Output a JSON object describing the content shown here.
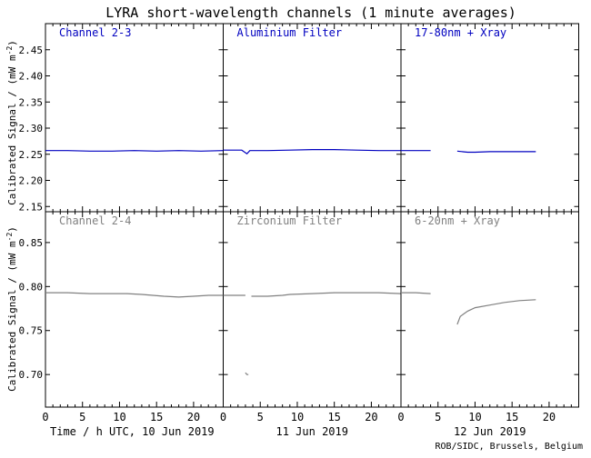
{
  "title": "LYRA short-wavelength channels (1 minute averages)",
  "credit": "ROB/SIDC, Brussels, Belgium",
  "y_axis_label_top": "Calibrated Signal / (mW m",
  "y_axis_label_bottom": "Calibrated Signal / (mW m",
  "y_axis_label_sup": "-2",
  "y_axis_label_close": ")",
  "colors": {
    "axis": "#000000",
    "top_series": "#0000c0",
    "bottom_series": "#808080",
    "background": "#ffffff"
  },
  "chart_data": [
    {
      "type": "line",
      "row": "top",
      "ylim": [
        2.14,
        2.5
      ],
      "yticks": [
        2.15,
        2.2,
        2.25,
        2.3,
        2.35,
        2.4,
        2.45
      ],
      "ytick_labels": [
        "2.15",
        "2.20",
        "2.25",
        "2.30",
        "2.35",
        "2.40",
        "2.45"
      ],
      "grid": false,
      "panels": [
        {
          "label": "Channel 2-3",
          "date": "",
          "segments": [
            [
              [
                0,
                2.257
              ],
              [
                3,
                2.257
              ],
              [
                6,
                2.256
              ],
              [
                9,
                2.256
              ],
              [
                12,
                2.257
              ],
              [
                15,
                2.256
              ],
              [
                18,
                2.257
              ],
              [
                21,
                2.256
              ],
              [
                24,
                2.257
              ]
            ]
          ]
        },
        {
          "label": "Aluminium Filter",
          "date": "",
          "segments": [
            [
              [
                0,
                2.258
              ],
              [
                2.5,
                2.258
              ],
              [
                3.2,
                2.251
              ],
              [
                3.6,
                2.257
              ],
              [
                6,
                2.257
              ],
              [
                9,
                2.258
              ],
              [
                12,
                2.259
              ],
              [
                15,
                2.259
              ],
              [
                18,
                2.258
              ],
              [
                21,
                2.257
              ],
              [
                24,
                2.257
              ]
            ]
          ]
        },
        {
          "label": "17-80nm + Xray",
          "date": "",
          "segments": [
            [
              [
                0,
                2.257
              ],
              [
                2,
                2.257
              ],
              [
                4,
                2.257
              ]
            ],
            [
              [
                7.6,
                2.256
              ],
              [
                9,
                2.254
              ],
              [
                10,
                2.254
              ],
              [
                12,
                2.255
              ],
              [
                15,
                2.255
              ],
              [
                18.2,
                2.255
              ]
            ]
          ]
        }
      ]
    },
    {
      "type": "line",
      "row": "bottom",
      "ylim": [
        0.663,
        0.885
      ],
      "yticks": [
        0.7,
        0.75,
        0.8,
        0.85
      ],
      "ytick_labels": [
        "0.70",
        "0.75",
        "0.80",
        "0.85"
      ],
      "xlim": [
        0,
        24
      ],
      "xticks": [
        0,
        5,
        10,
        15,
        20
      ],
      "xtick_labels": [
        "0",
        "5",
        "10",
        "15",
        "20"
      ],
      "grid": false,
      "panels": [
        {
          "label": "Channel 2-4",
          "date": "Time / h UTC, 10 Jun 2019",
          "segments": [
            [
              [
                0,
                0.793
              ],
              [
                3,
                0.793
              ],
              [
                6,
                0.792
              ],
              [
                9,
                0.792
              ],
              [
                11,
                0.792
              ],
              [
                13,
                0.791
              ],
              [
                16,
                0.789
              ],
              [
                18,
                0.788
              ],
              [
                20,
                0.789
              ],
              [
                22,
                0.79
              ],
              [
                24,
                0.79
              ]
            ]
          ]
        },
        {
          "label": "Zirconium Filter",
          "date": "11 Jun 2019",
          "segments": [
            [
              [
                0,
                0.79
              ],
              [
                2,
                0.79
              ],
              [
                3,
                0.79
              ]
            ],
            [
              [
                3.0,
                0.702
              ],
              [
                3.2,
                0.7
              ],
              [
                3.4,
                0.7
              ]
            ],
            [
              [
                3.8,
                0.789
              ],
              [
                6,
                0.789
              ],
              [
                8,
                0.79
              ],
              [
                9,
                0.791
              ],
              [
                12,
                0.792
              ],
              [
                15,
                0.793
              ],
              [
                18,
                0.793
              ],
              [
                21,
                0.793
              ],
              [
                24,
                0.792
              ]
            ]
          ]
        },
        {
          "label": "6-20nm + Xray",
          "date": "12 Jun 2019",
          "segments": [
            [
              [
                0,
                0.793
              ],
              [
                2,
                0.793
              ],
              [
                4,
                0.792
              ]
            ],
            [
              [
                7.6,
                0.757
              ],
              [
                8,
                0.766
              ],
              [
                9,
                0.772
              ],
              [
                10,
                0.776
              ],
              [
                12,
                0.779
              ],
              [
                14,
                0.782
              ],
              [
                16,
                0.784
              ],
              [
                18.2,
                0.785
              ]
            ]
          ]
        }
      ]
    }
  ]
}
